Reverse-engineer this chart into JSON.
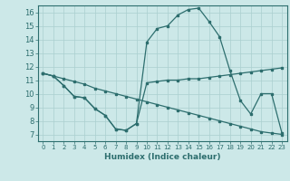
{
  "xlabel": "Humidex (Indice chaleur)",
  "xlim": [
    -0.5,
    23.5
  ],
  "ylim": [
    6.5,
    16.5
  ],
  "xticks": [
    0,
    1,
    2,
    3,
    4,
    5,
    6,
    7,
    8,
    9,
    10,
    11,
    12,
    13,
    14,
    15,
    16,
    17,
    18,
    19,
    20,
    21,
    22,
    23
  ],
  "yticks": [
    7,
    8,
    9,
    10,
    11,
    12,
    13,
    14,
    15,
    16
  ],
  "background_color": "#cce8e8",
  "grid_color": "#aacfcf",
  "line_color": "#2d6e6e",
  "line1_x": [
    0,
    1,
    2,
    3,
    4,
    5,
    6,
    7,
    8,
    9,
    10,
    11,
    12,
    13,
    14,
    15,
    16,
    17,
    18,
    19,
    20,
    21,
    22,
    23
  ],
  "line1_y": [
    11.5,
    11.3,
    10.6,
    9.8,
    9.7,
    8.9,
    8.4,
    7.4,
    7.3,
    7.8,
    10.8,
    10.9,
    11.0,
    11.0,
    11.1,
    11.1,
    11.2,
    11.3,
    11.4,
    11.5,
    11.6,
    11.7,
    11.8,
    11.9
  ],
  "line2_x": [
    0,
    1,
    2,
    3,
    4,
    5,
    6,
    7,
    8,
    9,
    10,
    11,
    12,
    13,
    14,
    15,
    16,
    17,
    18,
    19,
    20,
    21,
    22,
    23
  ],
  "line2_y": [
    11.5,
    11.3,
    11.1,
    10.9,
    10.7,
    10.4,
    10.2,
    10.0,
    9.8,
    9.6,
    9.4,
    9.2,
    9.0,
    8.8,
    8.6,
    8.4,
    8.2,
    8.0,
    7.8,
    7.6,
    7.4,
    7.2,
    7.1,
    7.0
  ],
  "line3_x": [
    0,
    1,
    2,
    3,
    4,
    5,
    6,
    7,
    8,
    9,
    10,
    11,
    12,
    13,
    14,
    15,
    16,
    17,
    18,
    19,
    20,
    21,
    22,
    23
  ],
  "line3_y": [
    11.5,
    11.3,
    10.6,
    9.8,
    9.7,
    8.9,
    8.4,
    7.4,
    7.3,
    7.8,
    13.8,
    14.8,
    15.0,
    15.8,
    16.2,
    16.3,
    15.3,
    14.2,
    11.7,
    9.5,
    8.5,
    10.0,
    10.0,
    7.1
  ]
}
